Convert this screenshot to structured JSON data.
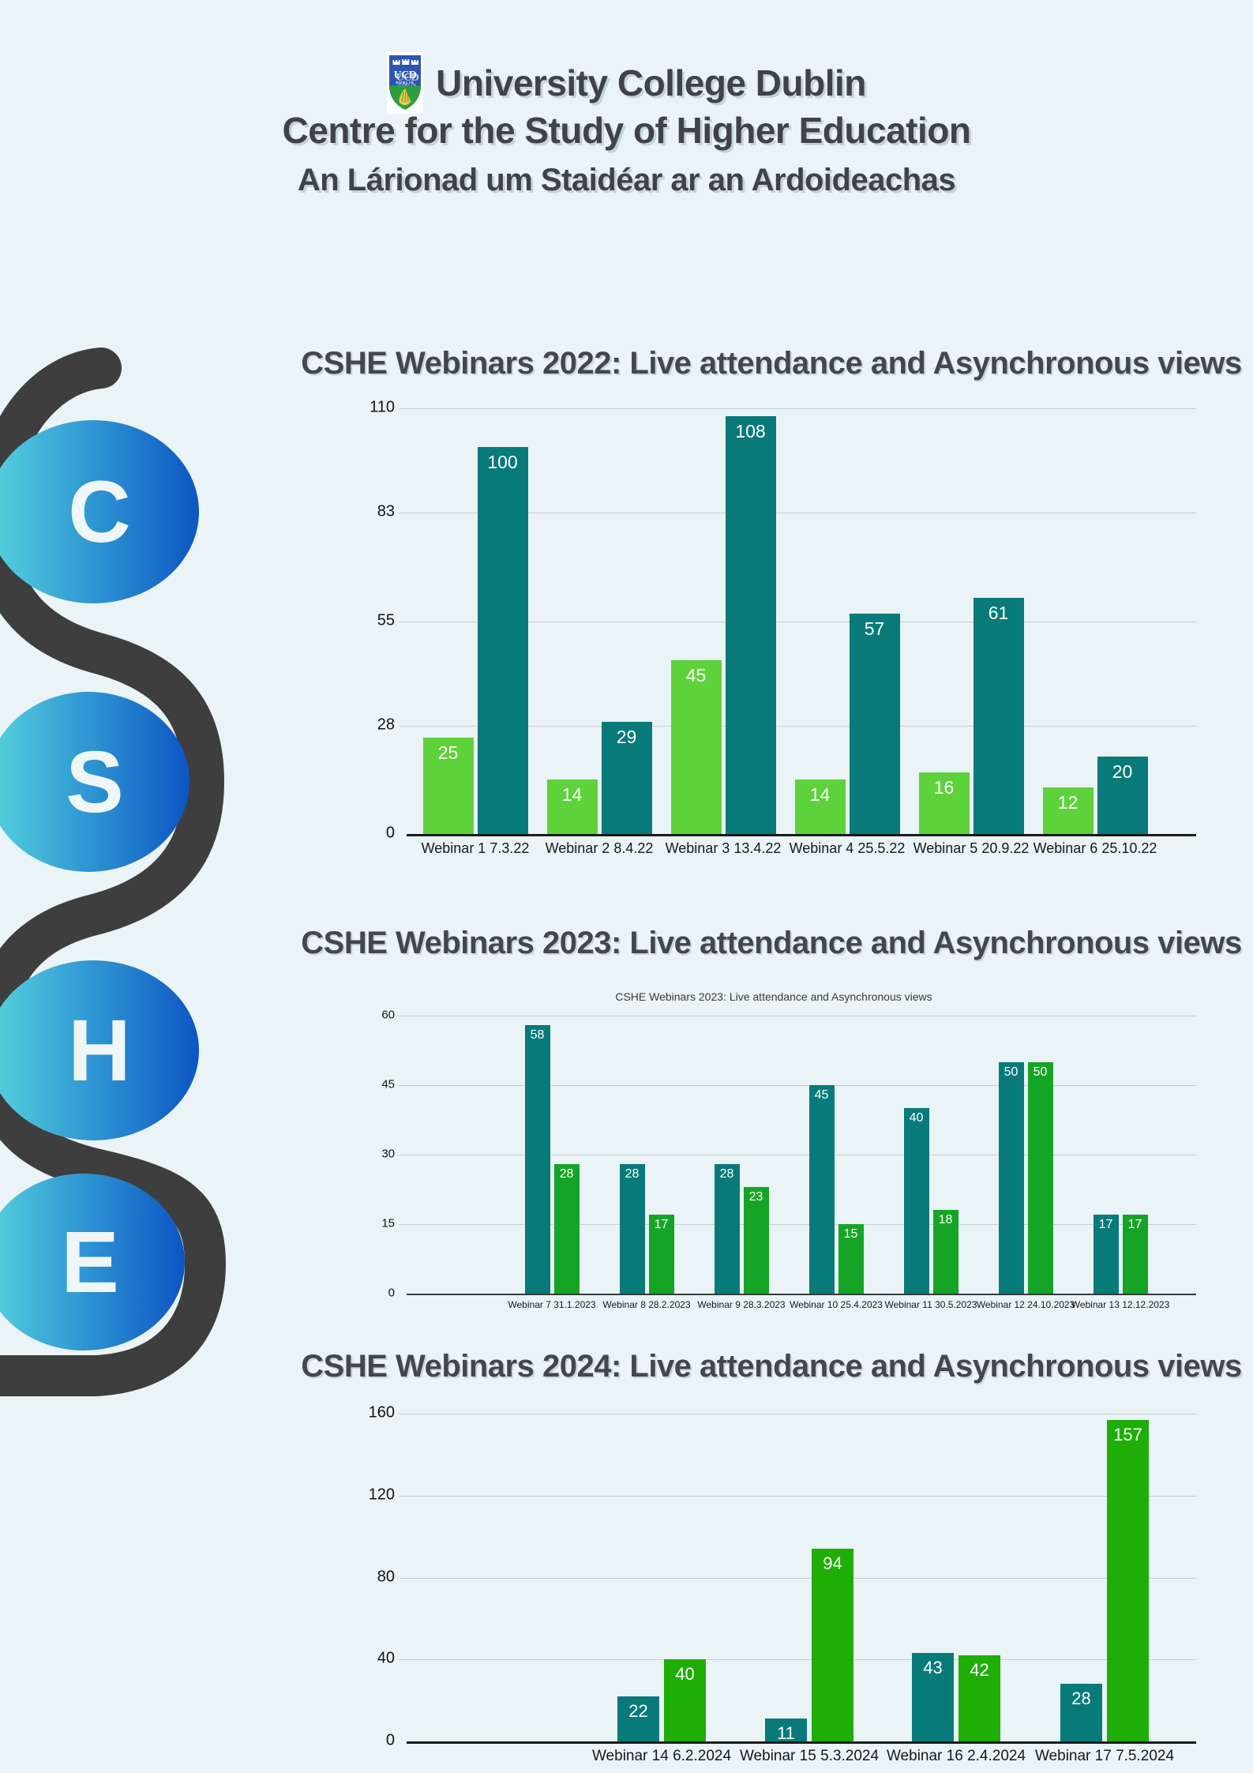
{
  "page": {
    "background": "#eaf3f5"
  },
  "header": {
    "crest": {
      "ucd": "UCD",
      "dublin": "DUBLIN"
    },
    "line1": "University College Dublin",
    "line2": "Centre for the Study of Higher Education",
    "line3": "An Lárionad um Staidéar ar an Ardoideachas"
  },
  "logo": {
    "letters": [
      "C",
      "S",
      "H",
      "E"
    ],
    "circle_gradient": [
      "#57d4de",
      "#0d55c2"
    ],
    "ribbon_color": "#3e3e3e"
  },
  "chart_data": [
    {
      "type": "bar",
      "title": "CSHE Webinars 2022: Live attendance and Asynchronous views",
      "categories": [
        "Webinar 1 7.3.22",
        "Webinar 2 8.4.22",
        "Webinar 3 13.4.22",
        "Webinar 4 25.5.22",
        "Webinar 5 20.9.22",
        "Webinar 6 25.10.22"
      ],
      "series": [
        {
          "name": "left_bar",
          "color": "#5ed23a",
          "values": [
            25,
            14,
            45,
            14,
            16,
            12
          ]
        },
        {
          "name": "right_bar",
          "color": "#087a7a",
          "values": [
            100,
            29,
            108,
            57,
            61,
            20
          ]
        }
      ],
      "ylim": [
        0,
        110
      ],
      "yticks": [
        0,
        28,
        55,
        83,
        110
      ],
      "grid": true,
      "legend": "none",
      "value_labels": true
    },
    {
      "type": "bar",
      "title": "CSHE Webinars 2023: Live attendance and Asynchronous views",
      "inner_title": "CSHE Webinars 2023: Live attendance and Asynchronous views",
      "categories": [
        "Webinar 7 31.1.2023",
        "Webinar 8 28.2.2023",
        "Webinar 9 28.3.2023",
        "Webinar 10 25.4.2023",
        "Webinar 11 30.5.2023",
        "Webinar 12 24.10.2023",
        "Webinar 13 12.12.2023"
      ],
      "series": [
        {
          "name": "left_bar",
          "color": "#087a7a",
          "values": [
            58,
            28,
            28,
            45,
            40,
            50,
            17
          ]
        },
        {
          "name": "right_bar",
          "color": "#16a426",
          "values": [
            28,
            17,
            23,
            15,
            18,
            50,
            17
          ]
        }
      ],
      "ylim": [
        0,
        60
      ],
      "yticks": [
        0,
        15,
        30,
        45,
        60
      ],
      "grid": true,
      "legend": "none",
      "value_labels": true
    },
    {
      "type": "bar",
      "title": "CSHE Webinars 2024: Live attendance and Asynchronous views",
      "categories": [
        "Webinar 14 6.2.2024",
        "Webinar 15 5.3.2024",
        "Webinar 16 2.4.2024",
        "Webinar 17 7.5.2024"
      ],
      "series": [
        {
          "name": "left_bar",
          "color": "#087a7a",
          "values": [
            22,
            11,
            43,
            28
          ]
        },
        {
          "name": "right_bar",
          "color": "#1fad08",
          "values": [
            40,
            94,
            42,
            157
          ]
        }
      ],
      "ylim": [
        0,
        160
      ],
      "yticks": [
        0,
        40,
        80,
        120,
        160
      ],
      "grid": true,
      "legend": "none",
      "value_labels": true
    }
  ]
}
